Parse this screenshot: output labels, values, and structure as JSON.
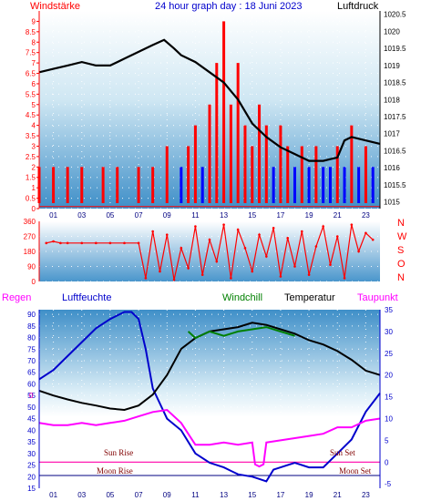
{
  "colors": {
    "wind": "#ff0000",
    "gust": "#ff0000",
    "wind_blue": "#0000ff",
    "pressure": "#000000",
    "direction": "#ff0000",
    "humidity": "#0000cc",
    "windchill": "#008000",
    "temperature": "#000000",
    "dewpoint": "#ff00ff",
    "zero_line": "#ff00aa",
    "sun_line": "#000080",
    "annotation": "#800000",
    "frame_text_blue": "#0000cc"
  },
  "chart_data": [
    {
      "type": "line",
      "title": "24 hour graph day : 18 Juni 2023",
      "left_axis_label": "Windstärke",
      "right_axis_label": "Luftdruck",
      "x_ticks": [
        "01",
        "03",
        "05",
        "07",
        "09",
        "11",
        "13",
        "15",
        "17",
        "19",
        "21",
        "23"
      ],
      "x_range": [
        0,
        24
      ],
      "ylim_left": [
        0,
        9.5
      ],
      "yticks_left": [
        "0",
        "0.5",
        "1",
        "1.5",
        "2",
        "2.5",
        "3",
        "3.5",
        "4",
        "4.5",
        "5",
        "5.5",
        "6",
        "6.5",
        "7",
        "7.5",
        "8",
        "8.5",
        "9"
      ],
      "ylim_right": [
        1014.8,
        1020.6
      ],
      "yticks_right": [
        "1015",
        "1015.5",
        "1016",
        "1016.5",
        "1017",
        "1017.5",
        "1018",
        "1018.5",
        "1019",
        "1019.5",
        "1020",
        "1020.5"
      ],
      "series": [
        {
          "name": "Luftdruck",
          "x": [
            0,
            1,
            2,
            3,
            4,
            5,
            6,
            7,
            8,
            8.8,
            9.5,
            10,
            11,
            12,
            13,
            14,
            15,
            16,
            17,
            18,
            19,
            20,
            20.5,
            21,
            21.5,
            22,
            23,
            24
          ],
          "values": [
            1018.8,
            1018.9,
            1019.0,
            1019.1,
            1019.0,
            1019.0,
            1019.2,
            1019.4,
            1019.6,
            1019.75,
            1019.5,
            1019.3,
            1019.1,
            1018.8,
            1018.5,
            1018.0,
            1017.3,
            1016.9,
            1016.6,
            1016.4,
            1016.2,
            1016.2,
            1016.25,
            1016.3,
            1016.8,
            1016.9,
            1016.8,
            1016.7
          ]
        },
        {
          "name": "Windstärke",
          "x": [
            0,
            0.5,
            1,
            1.5,
            2,
            2.5,
            3,
            3.5,
            4,
            4.5,
            5,
            5.5,
            6,
            6.5,
            7,
            7.5,
            8,
            8.5,
            9,
            9.5,
            10,
            10.5,
            11,
            11.5,
            12,
            12.5,
            13,
            13.5,
            14,
            14.5,
            15,
            15.5,
            16,
            16.5,
            17,
            17.5,
            18,
            18.5,
            19,
            19.5,
            20,
            20.5,
            21,
            21.5,
            22,
            22.5,
            23,
            23.5
          ],
          "values": [
            2,
            0,
            2,
            0,
            2,
            0,
            2,
            0,
            0,
            2,
            0,
            2,
            0,
            0,
            2,
            0,
            2,
            0,
            3,
            0,
            2,
            3,
            4,
            2,
            5,
            7,
            9,
            5,
            7,
            4,
            3,
            5,
            4,
            2,
            4,
            3,
            2,
            3,
            2,
            3,
            2,
            2,
            3,
            2,
            4,
            2,
            3,
            2
          ]
        }
      ]
    },
    {
      "type": "scatter",
      "yticks": [
        "0",
        "90",
        "180",
        "270",
        "360"
      ],
      "ylim": [
        0,
        360
      ],
      "right_labels": [
        "N",
        "W",
        "S",
        "O",
        "N"
      ],
      "x_ticks": [
        "01",
        "03",
        "05",
        "07",
        "09",
        "11",
        "13",
        "15",
        "17",
        "19",
        "21",
        "23"
      ],
      "series": [
        {
          "name": "",
          "x": [
            0.5,
            1,
            1.5,
            2,
            3,
            4,
            5,
            6,
            7,
            7.5,
            8,
            8.5,
            9,
            9.5,
            10,
            10.5,
            11,
            11.5,
            12,
            12.5,
            13,
            13.5,
            14,
            14.5,
            15,
            15.5,
            16,
            16.5,
            17,
            17.5,
            18,
            18.5,
            19,
            19.5,
            20,
            20.5,
            21,
            21.5,
            22,
            22.5,
            23,
            23.5
          ],
          "values": [
            230,
            240,
            230,
            230,
            230,
            230,
            230,
            230,
            230,
            20,
            300,
            60,
            280,
            10,
            200,
            80,
            330,
            40,
            250,
            120,
            340,
            20,
            310,
            200,
            60,
            280,
            150,
            320,
            30,
            260,
            90,
            300,
            40,
            210,
            330,
            100,
            270,
            20,
            340,
            180,
            290,
            250
          ]
        }
      ]
    },
    {
      "type": "line",
      "left_labels": [
        "Regen",
        "Luftfeuchte"
      ],
      "legend": [
        "Windchill",
        "Temperatur",
        "Taupunkt"
      ],
      "x_ticks": [
        "01",
        "03",
        "05",
        "07",
        "09",
        "11",
        "13",
        "15",
        "17",
        "19",
        "21",
        "23"
      ],
      "ylim_left": [
        15,
        92
      ],
      "yticks_left": [
        "15",
        "20",
        "25",
        "30",
        "35",
        "40",
        "45",
        "50",
        "55",
        "60",
        "65",
        "70",
        "75",
        "80",
        "85",
        "90"
      ],
      "ylim_right": [
        -6,
        35
      ],
      "yticks_right": [
        "-5",
        "0",
        "5",
        "10",
        "15",
        "20",
        "25",
        "30",
        "35"
      ],
      "zero_label": "0",
      "annotations": [
        "Sun Rise",
        "Sun Set",
        "Moon Rise",
        "Moon Set"
      ],
      "series": [
        {
          "name": "Luftfeuchte",
          "x": [
            0,
            1,
            2,
            3,
            4,
            5,
            6,
            6.5,
            7,
            7.5,
            8,
            9,
            10,
            11,
            12,
            13,
            14,
            15,
            15.5,
            16,
            16.5,
            17,
            18,
            19,
            20,
            21,
            22,
            23,
            24
          ],
          "values": [
            62,
            66,
            72,
            78,
            84,
            88,
            91,
            91,
            88,
            75,
            58,
            45,
            40,
            30,
            26,
            24,
            21,
            20,
            19,
            18,
            23,
            24,
            26,
            24,
            24,
            30,
            36,
            48,
            56
          ]
        },
        {
          "name": "Temperatur",
          "x": [
            0,
            1,
            2,
            3,
            4,
            5,
            6,
            7,
            8,
            9,
            10,
            11,
            12,
            13,
            14,
            15,
            16,
            17,
            18,
            19,
            20,
            21,
            22,
            23,
            24
          ],
          "values": [
            16.4,
            15.3,
            14.4,
            13.6,
            13.0,
            12.3,
            12.0,
            13.0,
            15.5,
            20.0,
            26.0,
            28.5,
            30.0,
            30.5,
            31.0,
            32.0,
            31.5,
            30.5,
            29.5,
            28.0,
            27.0,
            25.5,
            23.5,
            21.0,
            20.0
          ]
        },
        {
          "name": "Windchill",
          "x": [
            10.5,
            11,
            12,
            13,
            14,
            15,
            16,
            17,
            18
          ],
          "values": [
            30.0,
            28.5,
            30.0,
            29.0,
            30.0,
            30.5,
            31.0,
            30.0,
            29.0
          ]
        },
        {
          "name": "Taupunkt",
          "x": [
            0,
            1,
            2,
            3,
            4,
            5,
            6,
            7,
            8,
            9,
            10,
            11,
            12,
            13,
            14,
            15,
            15.2,
            15.5,
            15.8,
            16,
            17,
            18,
            19,
            20,
            21,
            22,
            23,
            24
          ],
          "values": [
            9.0,
            8.5,
            8.5,
            9.0,
            8.5,
            9.0,
            9.5,
            10.5,
            11.5,
            12.0,
            9.0,
            4.0,
            4.0,
            4.5,
            4.0,
            4.5,
            -0.5,
            -1.0,
            -0.5,
            4.5,
            5.0,
            5.5,
            6.0,
            6.5,
            8.0,
            8.0,
            9.5,
            10.0
          ]
        }
      ]
    }
  ]
}
